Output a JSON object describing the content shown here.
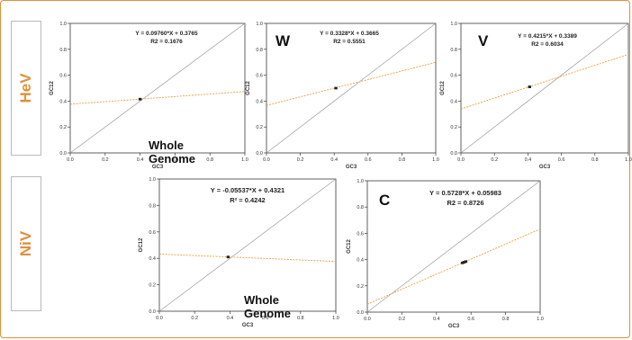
{
  "row_labels": {
    "hev": "HeV",
    "niv": "NiV"
  },
  "colors": {
    "frame": "#e0913a",
    "label": "#e0913a",
    "trend": "#e8a040",
    "diagonal": "#9a9a9a",
    "point": "#222222"
  },
  "chart_data": [
    {
      "type": "scatter",
      "title": "Whole Genome",
      "equation": "Y = 0.09760*X + 0.3765",
      "r2": "R2 = 0.1676",
      "xlabel": "GC3",
      "ylabel": "GC12",
      "xlim": [
        0,
        1
      ],
      "ylim": [
        0,
        1
      ],
      "xticks": [
        "0.0",
        "0.2",
        "0.4",
        "0.6",
        "0.8",
        "1.0"
      ],
      "yticks": [
        "0.0",
        "0.2",
        "0.4",
        "0.6",
        "0.8",
        "1.0"
      ],
      "slope": 0.0976,
      "intercept": 0.3765,
      "points": [
        [
          0.4,
          0.415
        ]
      ]
    },
    {
      "type": "scatter",
      "title": "W",
      "equation": "Y = 0.3328*X + 0.3665",
      "r2": "R2 = 0.5551",
      "xlabel": "GC3",
      "ylabel": "GC12",
      "xlim": [
        0,
        1
      ],
      "ylim": [
        0,
        1
      ],
      "xticks": [
        "0.0",
        "0.2",
        "0.4",
        "0.6",
        "0.8",
        "1.0"
      ],
      "yticks": [
        "0.0",
        "0.2",
        "0.4",
        "0.6",
        "0.8",
        "1.0"
      ],
      "slope": 0.3328,
      "intercept": 0.3665,
      "points": [
        [
          0.41,
          0.5
        ]
      ]
    },
    {
      "type": "scatter",
      "title": "V",
      "equation": "Y = 0.4215*X + 0.3389",
      "r2": "R2 = 0.6034",
      "xlabel": "GC3",
      "ylabel": "GC12",
      "xlim": [
        0,
        1
      ],
      "ylim": [
        0,
        1
      ],
      "xticks": [
        "0.0",
        "0.2",
        "0.4",
        "0.6",
        "0.8",
        "1.0"
      ],
      "yticks": [
        "0.0",
        "0.2",
        "0.4",
        "0.6",
        "0.8",
        "1.0"
      ],
      "slope": 0.4215,
      "intercept": 0.3389,
      "points": [
        [
          0.41,
          0.51
        ]
      ]
    },
    {
      "type": "scatter",
      "title": "Whole Genome",
      "equation": "Y = -0.05537*X + 0.4321",
      "r2": "R² = 0.4242",
      "xlabel": "GC3",
      "ylabel": "GC12",
      "xlim": [
        0,
        1
      ],
      "ylim": [
        0,
        1
      ],
      "xticks": [
        "0.0",
        "0.2",
        "0.4",
        "0.6",
        "0.8",
        "1.0"
      ],
      "yticks": [
        "0.0",
        "0.2",
        "0.4",
        "0.6",
        "0.8",
        "1.0"
      ],
      "slope": -0.05537,
      "intercept": 0.4321,
      "points": [
        [
          0.39,
          0.41
        ]
      ]
    },
    {
      "type": "scatter",
      "title": "C",
      "equation": "Y = 0.5728*X + 0.05983",
      "r2": "R2 = 0.8726",
      "xlabel": "GC3",
      "ylabel": "GC12",
      "xlim": [
        0,
        1
      ],
      "ylim": [
        0,
        1
      ],
      "xticks": [
        "0.0",
        "0.2",
        "0.4",
        "0.6",
        "0.8",
        "1.0"
      ],
      "yticks": [
        "0.0",
        "0.2",
        "0.4",
        "0.6",
        "0.8",
        "1.0"
      ],
      "slope": 0.5728,
      "intercept": 0.05983,
      "points": [
        [
          0.55,
          0.375
        ],
        [
          0.56,
          0.38
        ],
        [
          0.57,
          0.385
        ]
      ]
    }
  ]
}
